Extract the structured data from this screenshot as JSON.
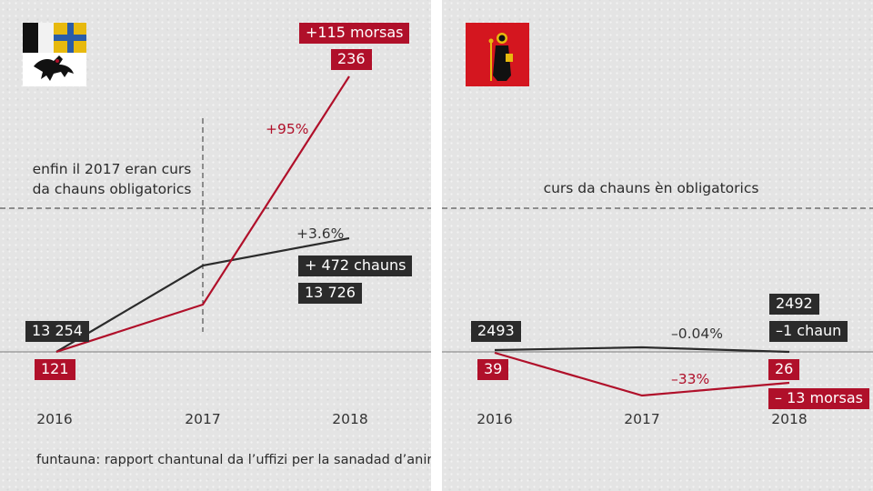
{
  "colors": {
    "red": "#b0102a",
    "dark": "#2b2b2b",
    "axis": "#777777"
  },
  "source": "funtauna: rapport chantunal da l’uffizi per la sanadad d’animals",
  "chart_data": [
    {
      "type": "line",
      "flag_icon": "graubuenden-coat-of-arms",
      "x": [
        "2016",
        "2017",
        "2018"
      ],
      "annotation": {
        "line1": "enfin il 2017 eran curs",
        "line2": "da chauns obligatorics"
      },
      "series": [
        {
          "color": "#2b2b2b",
          "values": [
            13254,
            null,
            13726
          ],
          "label_start": "13 254",
          "label_end": "13 726",
          "change_label": "+ 472 chauns",
          "pct_label": "+3.6%"
        },
        {
          "color": "#b0102a",
          "values": [
            121,
            null,
            236
          ],
          "label_start": "121",
          "label_end": "236",
          "change_label": "+115 morsas",
          "pct_label": "+95%"
        }
      ]
    },
    {
      "type": "line",
      "flag_icon": "glarus-coat-of-arms",
      "x": [
        "2016",
        "2017",
        "2018"
      ],
      "annotation": {
        "line1": "curs da chauns èn obligatorics",
        "line2": ""
      },
      "series": [
        {
          "color": "#2b2b2b",
          "values": [
            2493,
            null,
            2492
          ],
          "label_start": "2493",
          "label_end": "2492",
          "change_label": "–1 chaun",
          "pct_label": "–0.04%"
        },
        {
          "color": "#b0102a",
          "values": [
            39,
            null,
            26
          ],
          "label_start": "39",
          "label_end": "26",
          "change_label": "– 13 morsas",
          "pct_label": "–33%"
        }
      ]
    }
  ]
}
